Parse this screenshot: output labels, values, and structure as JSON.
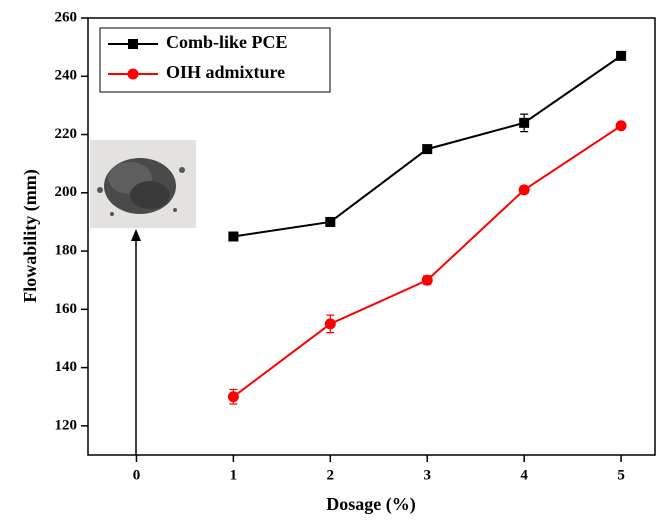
{
  "chart_data": {
    "type": "line",
    "xlabel": "Dosage (%)",
    "ylabel": "Flowability (mm)",
    "x": [
      1,
      2,
      3,
      4,
      5
    ],
    "series": [
      {
        "name": "Comb-like PCE",
        "color": "#000000",
        "marker": "square",
        "values": [
          185,
          190,
          215,
          224,
          247
        ],
        "errors": [
          1.5,
          1.5,
          0.5,
          3,
          0.5
        ]
      },
      {
        "name": "OIH admixture",
        "color": "#ff0000",
        "marker": "circle",
        "values": [
          130,
          155,
          170,
          201,
          223
        ],
        "errors": [
          2.5,
          3,
          1.5,
          1,
          0.5
        ]
      }
    ],
    "xlim": [
      -0.5,
      5.35
    ],
    "xticks": [
      0,
      1,
      2,
      3,
      4,
      5
    ],
    "ylim": [
      110,
      260
    ],
    "yticks": [
      120,
      140,
      160,
      180,
      200,
      220,
      240,
      260
    ],
    "legend": "upper left"
  }
}
